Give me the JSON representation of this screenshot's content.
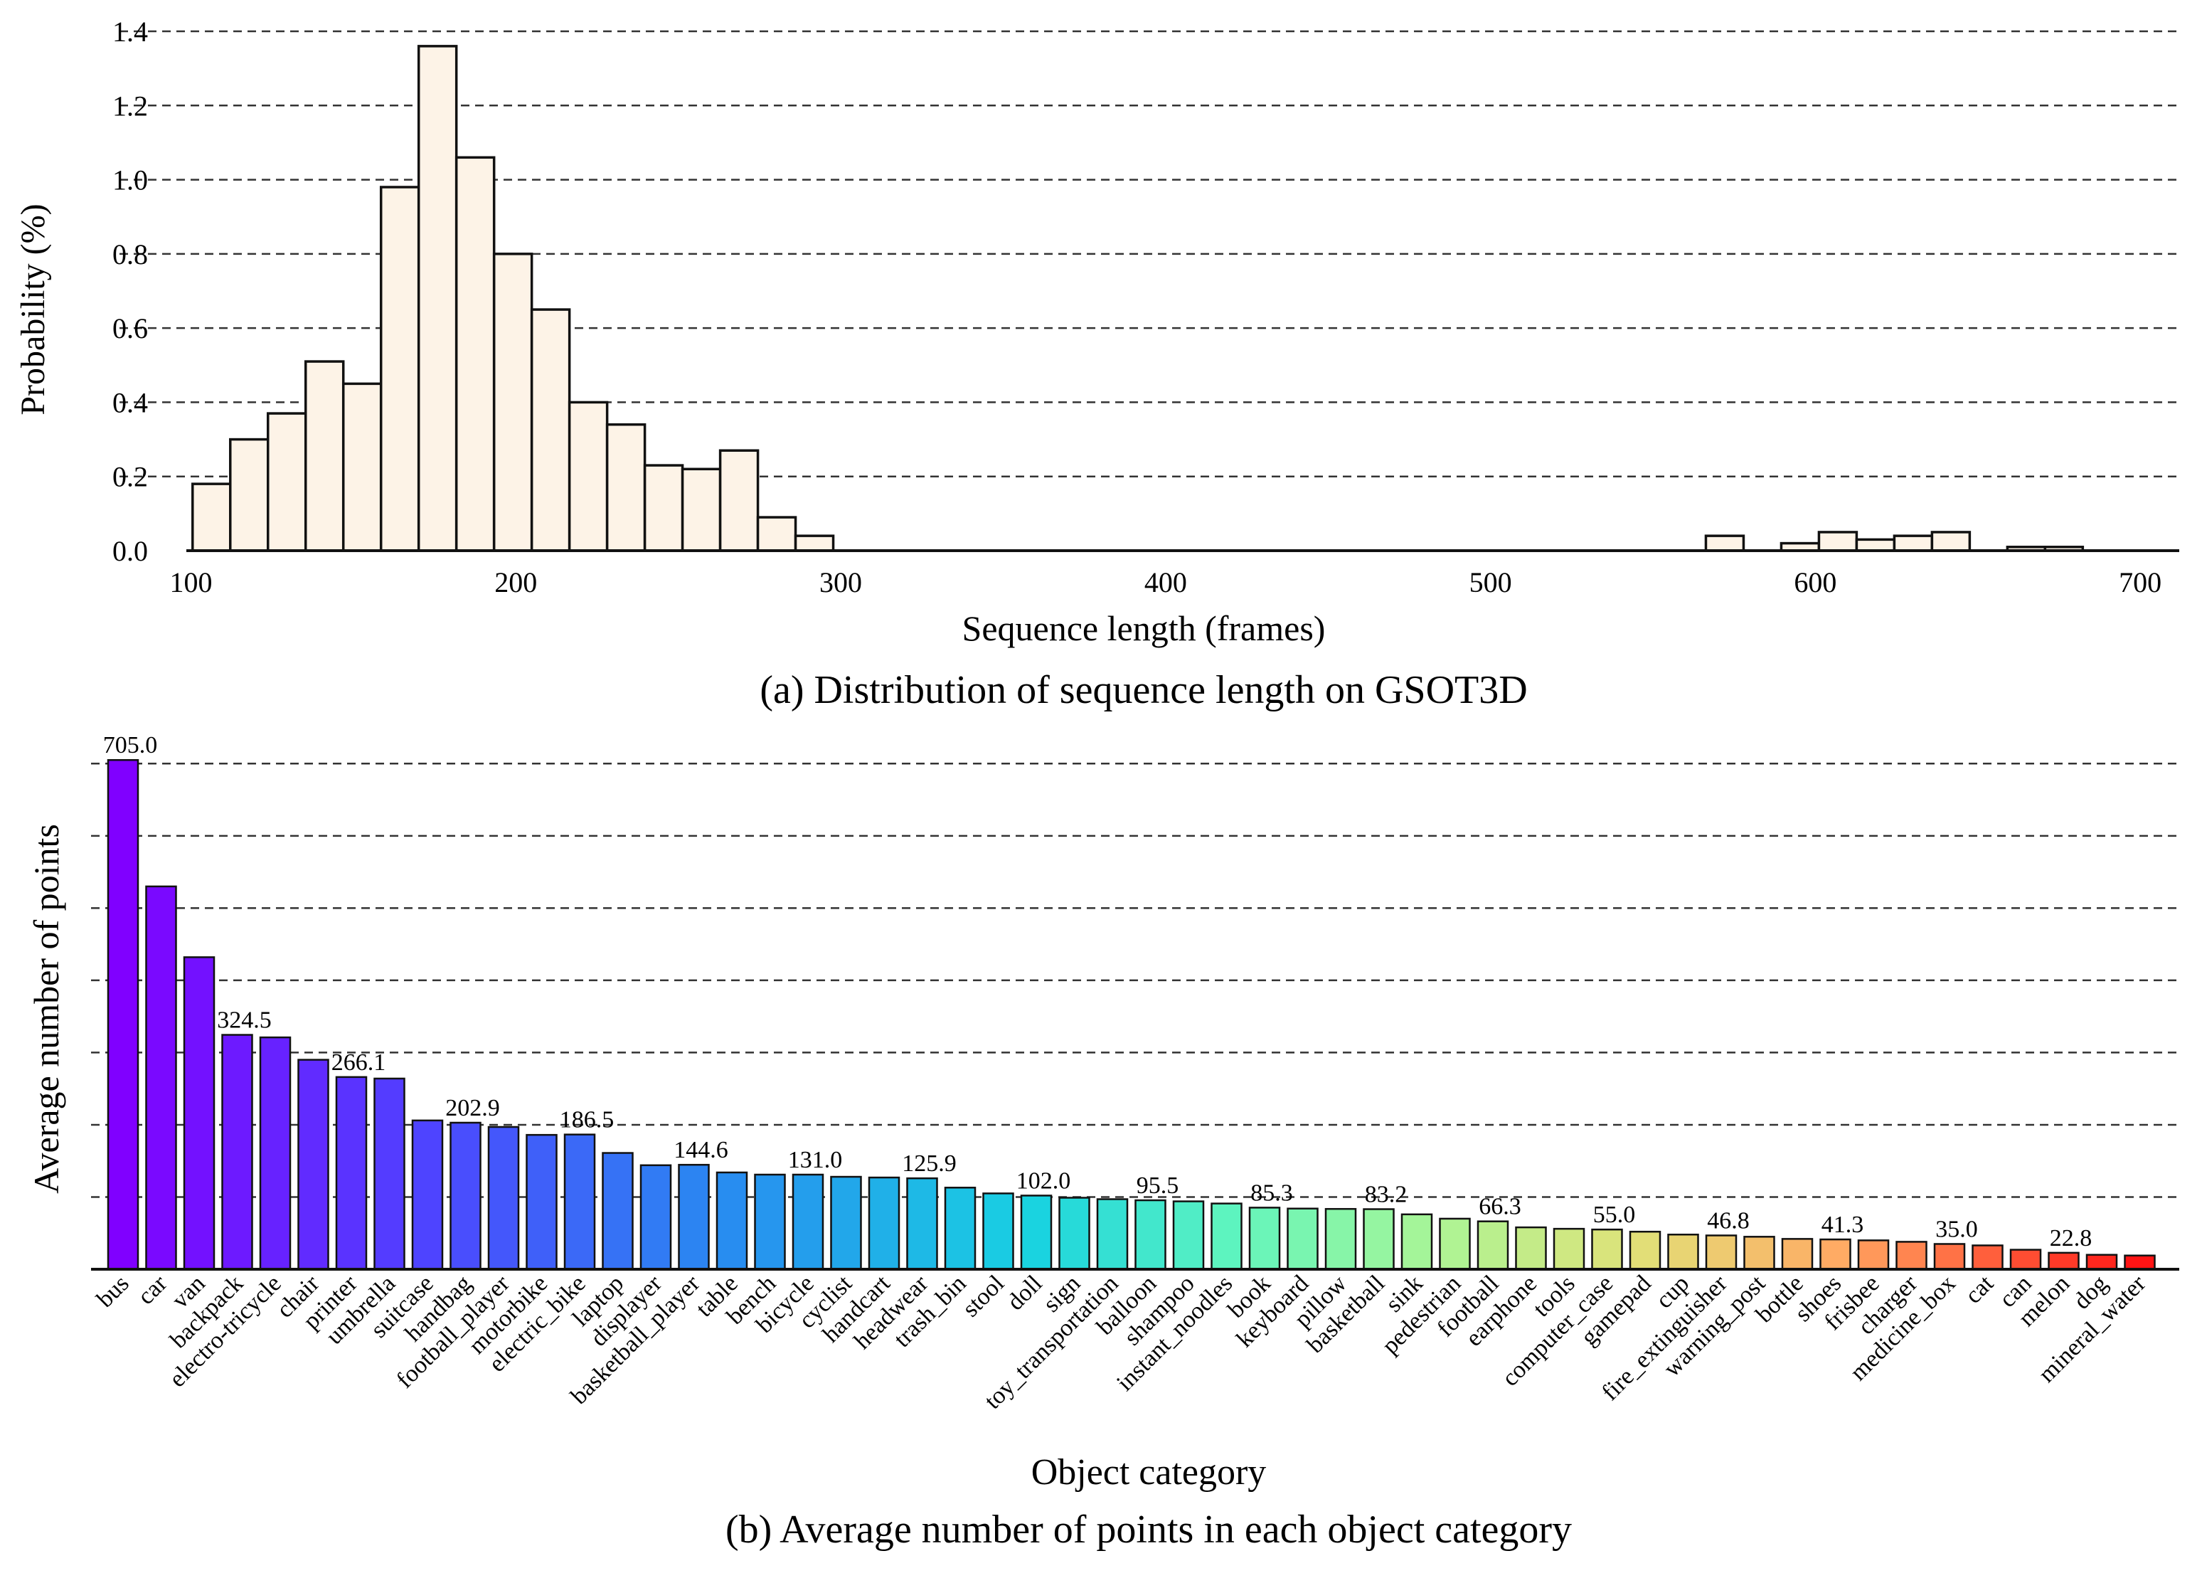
{
  "chart_data": [
    {
      "type": "bar",
      "panel": "a",
      "caption": "(a) Distribution of sequence length on GSOT3D",
      "xlabel": "Sequence length (frames)",
      "ylabel": "Probability (%)",
      "xlim": [
        78,
        712
      ],
      "ylim": [
        0,
        1.4
      ],
      "xticks": [
        100,
        200,
        300,
        400,
        500,
        600,
        700
      ],
      "yticks": [
        "0.0",
        "0.2",
        "0.4",
        "0.6",
        "0.8",
        "1.0",
        "1.2",
        "1.4"
      ],
      "grid": "horizontal dashed",
      "bin_width": 11.6,
      "bin_starts": [
        100.5,
        112.1,
        123.7,
        135.3,
        146.9,
        158.5,
        170.1,
        181.7,
        193.3,
        204.9,
        216.5,
        228.1,
        239.7,
        251.3,
        262.9,
        274.5,
        286.1,
        566.3,
        589.5,
        601.1,
        612.7,
        624.3,
        635.9,
        659.1,
        670.7
      ],
      "values": [
        0.18,
        0.3,
        0.37,
        0.51,
        0.45,
        0.98,
        1.36,
        1.06,
        0.8,
        0.65,
        0.4,
        0.34,
        0.23,
        0.22,
        0.27,
        0.09,
        0.04,
        0.04,
        0.02,
        0.05,
        0.03,
        0.04,
        0.05,
        0.01,
        0.01
      ],
      "colors": {
        "fill": "#fdf3e7",
        "edge": "#111111"
      }
    },
    {
      "type": "bar",
      "panel": "b",
      "caption": "(b) Average number of points in each object category",
      "xlabel": "Object category",
      "ylabel": "Average number of points",
      "ylim": [
        0,
        720
      ],
      "grid": "horizontal dashed",
      "categories": [
        "bus",
        "car",
        "van",
        "backpack",
        "electro-tricycle",
        "chair",
        "printer",
        "umbrella",
        "suitcase",
        "handbag",
        "football_player",
        "motorbike",
        "electric_bike",
        "laptop",
        "displayer",
        "basketball_player",
        "table",
        "bench",
        "bicycle",
        "cyclist",
        "handcart",
        "headwear",
        "trash_bin",
        "stool",
        "doll",
        "sign",
        "toy_transportation",
        "balloon",
        "shampoo",
        "instant_noodles",
        "book",
        "keyboard",
        "pillow",
        "basketball",
        "sink",
        "pedestrian",
        "football",
        "earphone",
        "tools",
        "computer_case",
        "gamepad",
        "cup",
        "fire_extinguisher",
        "warning_post",
        "bottle",
        "shoes",
        "frisbee",
        "charger",
        "medicine_box",
        "cat",
        "can",
        "melon",
        "dog",
        "mineral_water"
      ],
      "values": [
        705.0,
        530.0,
        432.0,
        324.5,
        321.0,
        290.0,
        266.1,
        264.0,
        206.0,
        202.9,
        197.0,
        186.0,
        186.5,
        161.0,
        144.0,
        144.6,
        134.0,
        131.0,
        131.0,
        128.0,
        127.0,
        125.9,
        113.0,
        105.0,
        102.0,
        99.0,
        97.0,
        95.5,
        94.0,
        91.0,
        85.3,
        84.0,
        83.5,
        83.2,
        76.0,
        70.0,
        66.3,
        58.0,
        56.0,
        55.0,
        52.0,
        48.0,
        46.8,
        45.0,
        42.0,
        41.3,
        40.0,
        38.0,
        35.0,
        33.0,
        27.0,
        22.8,
        20.0,
        19.0
      ],
      "data_labels": {
        "0": "705.0",
        "3": "324.5",
        "6": "266.1",
        "9": "202.9",
        "12": "186.5",
        "15": "144.6",
        "18": "131.0",
        "21": "125.9",
        "24": "102.0",
        "27": "95.5",
        "30": "85.3",
        "33": "83.2",
        "36": "66.3",
        "39": "55.0",
        "42": "46.8",
        "45": "41.3",
        "48": "35.0",
        "51": "22.8"
      },
      "colormap": "rainbow",
      "colors": {
        "edge": "#111111"
      }
    }
  ]
}
